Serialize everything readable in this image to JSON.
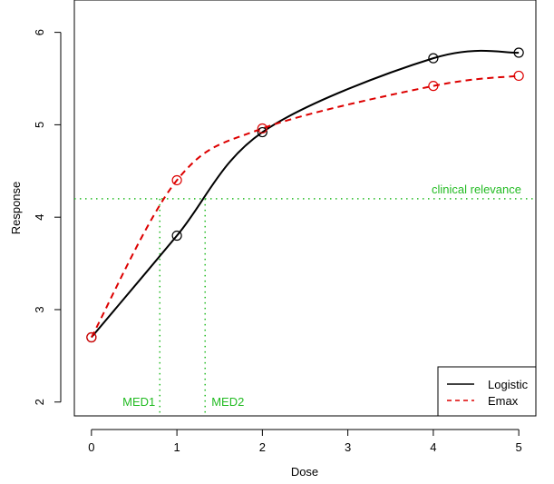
{
  "chart_data": {
    "type": "line",
    "xlabel": "Dose",
    "ylabel": "Response",
    "xlim": [
      -0.2,
      5.2
    ],
    "ylim": [
      1.85,
      6.35
    ],
    "x_ticks": [
      0,
      1,
      2,
      3,
      4,
      5
    ],
    "y_ticks": [
      2,
      3,
      4,
      5,
      6
    ],
    "grid": false,
    "legend_position": "bottom-right",
    "series": [
      {
        "name": "Logistic",
        "style": "solid",
        "color": "#000000",
        "marker": "open-circle",
        "points": [
          {
            "x": 0,
            "y": 2.7
          },
          {
            "x": 1,
            "y": 3.8
          },
          {
            "x": 2,
            "y": 4.92
          },
          {
            "x": 4,
            "y": 5.72
          },
          {
            "x": 5,
            "y": 5.78
          }
        ]
      },
      {
        "name": "Emax",
        "style": "dashed",
        "color": "#dd0000",
        "marker": "open-circle",
        "points": [
          {
            "x": 0,
            "y": 2.7
          },
          {
            "x": 1,
            "y": 4.4
          },
          {
            "x": 2,
            "y": 4.96
          },
          {
            "x": 4,
            "y": 5.42
          },
          {
            "x": 5,
            "y": 5.53
          }
        ]
      }
    ],
    "reference_lines": {
      "color": "#22bb22",
      "horizontal": {
        "y": 4.2,
        "label": "clinical relevance"
      },
      "vertical": [
        {
          "x": 0.8,
          "label": "MED1"
        },
        {
          "x": 1.33,
          "label": "MED2"
        }
      ]
    }
  }
}
